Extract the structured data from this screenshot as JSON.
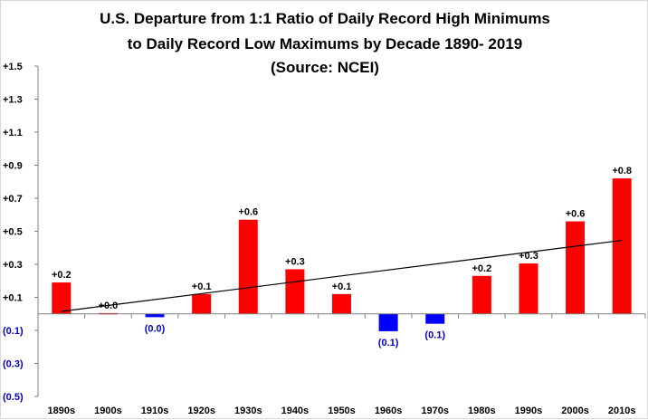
{
  "chart_data": {
    "type": "bar",
    "title_lines": [
      "U.S. Departure from 1:1 Ratio of Daily Record High Minimums",
      "to Daily Record Low Maximums by Decade 1890- 2019",
      "(Source: NCEI)"
    ],
    "categories": [
      "1890s",
      "1900s",
      "1910s",
      "1920s",
      "1930s",
      "1940s",
      "1950s",
      "1960s",
      "1970s",
      "1980s",
      "1990s",
      "2000s",
      "2010s"
    ],
    "values": [
      0.19,
      0.005,
      -0.02,
      0.12,
      0.57,
      0.27,
      0.12,
      -0.105,
      -0.06,
      0.23,
      0.305,
      0.56,
      0.82
    ],
    "data_labels": [
      "+0.2",
      "+0.0",
      "(0.0)",
      "+0.1",
      "+0.6",
      "+0.3",
      "+0.1",
      "(0.1)",
      "(0.1)",
      "+0.2",
      "+0.3",
      "+0.6",
      "+0.8"
    ],
    "ylim": [
      -0.5,
      1.5
    ],
    "yticks": [
      1.5,
      1.3,
      1.1,
      0.9,
      0.7,
      0.5,
      0.3,
      0.1,
      -0.1,
      -0.3,
      -0.5
    ],
    "ytick_labels": [
      "+1.5",
      "+1.3",
      "+1.1",
      "+0.9",
      "+0.7",
      "+0.5",
      "+0.3",
      "+0.1",
      "(0.1)",
      "(0.3)",
      "(0.5)"
    ],
    "trendline": {
      "start": 0.015,
      "end": 0.445
    },
    "grid": false,
    "legend": "none",
    "colors": {
      "positive": "#ff0000",
      "negative": "#0000ff",
      "trend": "#000000",
      "negative_label": "#0000cc"
    }
  }
}
